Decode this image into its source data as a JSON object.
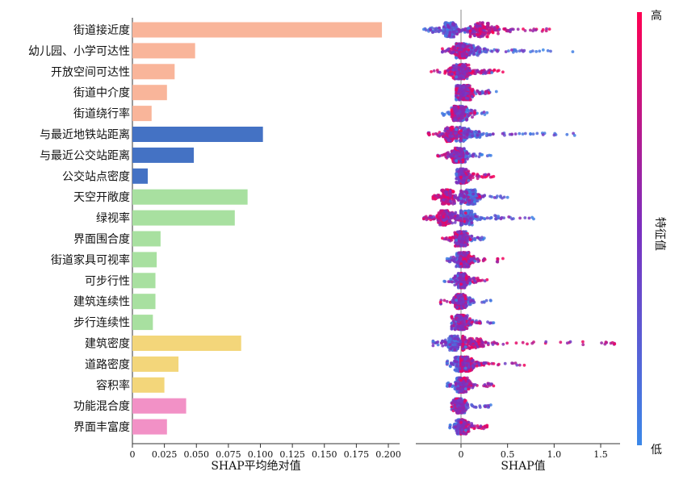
{
  "chart_data": [
    {
      "type": "bar",
      "orientation": "horizontal",
      "xlabel": "SHAP平均绝对值",
      "xlim": [
        0,
        0.2
      ],
      "xticks": [
        "0",
        "0.025",
        "0.050",
        "0.075",
        "0.100",
        "0.125",
        "0.150",
        "0.175",
        "0.200"
      ],
      "categories": [
        "街道接近度",
        "幼儿园、小学可达性",
        "开放空间可达性",
        "街道中介度",
        "街道绕行率",
        "与最近地铁站距离",
        "与最近公交站距离",
        "公交站点密度",
        "天空开敞度",
        "绿视率",
        "界面围合度",
        "街道家具可视率",
        "可步行性",
        "建筑连续性",
        "步行连续性",
        "建筑密度",
        "道路密度",
        "容积率",
        "功能混合度",
        "界面丰富度"
      ],
      "values": [
        0.195,
        0.049,
        0.033,
        0.027,
        0.015,
        0.102,
        0.048,
        0.012,
        0.09,
        0.08,
        0.022,
        0.019,
        0.018,
        0.018,
        0.016,
        0.085,
        0.036,
        0.025,
        0.042,
        0.027
      ],
      "groups": [
        {
          "name": "street-network",
          "color": "#f9b59a",
          "indices": [
            0,
            1,
            2,
            3,
            4
          ]
        },
        {
          "name": "transit",
          "color": "#4472c4",
          "indices": [
            5,
            6,
            7
          ]
        },
        {
          "name": "perception",
          "color": "#a8e0a0",
          "indices": [
            8,
            9,
            10,
            11,
            12,
            13,
            14
          ]
        },
        {
          "name": "building-form",
          "color": "#f3d67a",
          "indices": [
            15,
            16,
            17
          ]
        },
        {
          "name": "function",
          "color": "#f291c6",
          "indices": [
            18,
            19
          ]
        }
      ]
    },
    {
      "type": "scatter",
      "subtype": "beeswarm",
      "xlabel": "SHAP值",
      "xlim": [
        -0.4,
        1.7
      ],
      "xticks": [
        "0",
        "0.5",
        "1.0",
        "1.5"
      ],
      "series": [
        {
          "feature": "街道接近度",
          "low_range": [
            -0.4,
            0.08
          ],
          "high_range": [
            0.1,
            0.95
          ],
          "low_center": -0.12,
          "high_center": 0.22
        },
        {
          "feature": "幼儿园、小学可达性",
          "low_range": [
            -0.05,
            1.2
          ],
          "high_range": [
            -0.2,
            0.08
          ],
          "low_center": 0.05,
          "high_center": 0.0
        },
        {
          "feature": "开放空间可达性",
          "low_range": [
            -0.05,
            0.33
          ],
          "high_range": [
            -0.32,
            0.45
          ],
          "low_center": 0.0,
          "high_center": -0.02
        },
        {
          "feature": "街道中介度",
          "low_range": [
            -0.05,
            0.38
          ],
          "high_range": [
            -0.05,
            0.3
          ],
          "low_center": 0.0,
          "high_center": 0.05
        },
        {
          "feature": "街道绕行率",
          "low_range": [
            -0.2,
            0.28
          ],
          "high_range": [
            -0.1,
            0.15
          ],
          "low_center": 0.0,
          "high_center": -0.05
        },
        {
          "feature": "与最近地铁站距离",
          "low_range": [
            -0.05,
            1.22
          ],
          "high_range": [
            -0.35,
            0.0
          ],
          "low_center": 0.02,
          "high_center": -0.12
        },
        {
          "feature": "与最近公交站距离",
          "low_range": [
            -0.05,
            0.32
          ],
          "high_range": [
            -0.25,
            0.02
          ],
          "low_center": 0.0,
          "high_center": -0.05
        },
        {
          "feature": "公交站点密度",
          "low_range": [
            -0.05,
            0.08
          ],
          "high_range": [
            0.0,
            0.35
          ],
          "low_center": 0.0,
          "high_center": 0.02
        },
        {
          "feature": "天空开敞度",
          "low_range": [
            0.0,
            0.5
          ],
          "high_range": [
            -0.3,
            0.2
          ],
          "low_center": 0.1,
          "high_center": -0.15
        },
        {
          "feature": "绿视率",
          "low_range": [
            0.0,
            0.78
          ],
          "high_range": [
            -0.4,
            0.05
          ],
          "low_center": 0.05,
          "high_center": -0.18
        },
        {
          "feature": "界面围合度",
          "low_range": [
            -0.05,
            0.25
          ],
          "high_range": [
            -0.2,
            0.1
          ],
          "low_center": 0.02,
          "high_center": -0.02
        },
        {
          "feature": "街道家具可视率",
          "low_range": [
            -0.15,
            0.15
          ],
          "high_range": [
            0.0,
            0.45
          ],
          "low_center": 0.0,
          "high_center": 0.03
        },
        {
          "feature": "可步行性",
          "low_range": [
            -0.18,
            0.1
          ],
          "high_range": [
            0.0,
            0.28
          ],
          "low_center": 0.0,
          "high_center": 0.02
        },
        {
          "feature": "建筑连续性",
          "low_range": [
            -0.05,
            0.32
          ],
          "high_range": [
            -0.22,
            0.05
          ],
          "low_center": 0.0,
          "high_center": -0.02
        },
        {
          "feature": "步行连续性",
          "low_range": [
            -0.1,
            0.35
          ],
          "high_range": [
            -0.1,
            0.2
          ],
          "low_center": 0.0,
          "high_center": 0.01
        },
        {
          "feature": "建筑密度",
          "low_range": [
            -0.3,
            0.05
          ],
          "high_range": [
            0.02,
            1.65
          ],
          "low_center": -0.08,
          "high_center": 0.05
        },
        {
          "feature": "道路密度",
          "low_range": [
            -0.15,
            0.05
          ],
          "high_range": [
            0.0,
            0.68
          ],
          "low_center": -0.02,
          "high_center": 0.05
        },
        {
          "feature": "容积率",
          "low_range": [
            -0.15,
            0.05
          ],
          "high_range": [
            0.0,
            0.35
          ],
          "low_center": -0.02,
          "high_center": 0.03
        },
        {
          "feature": "功能混合度",
          "low_range": [
            -0.1,
            0.32
          ],
          "high_range": [
            -0.1,
            0.05
          ],
          "low_center": 0.0,
          "high_center": -0.03
        },
        {
          "feature": "界面丰富度",
          "low_range": [
            -0.12,
            0.05
          ],
          "high_range": [
            0.0,
            0.28
          ],
          "low_center": -0.02,
          "high_center": 0.03
        }
      ],
      "colorbar": {
        "label": "特征值",
        "high_label": "高",
        "low_label": "低",
        "high_color": "#ff0052",
        "mid_color": "#7b2fbf",
        "low_color": "#3b88e8"
      }
    }
  ]
}
